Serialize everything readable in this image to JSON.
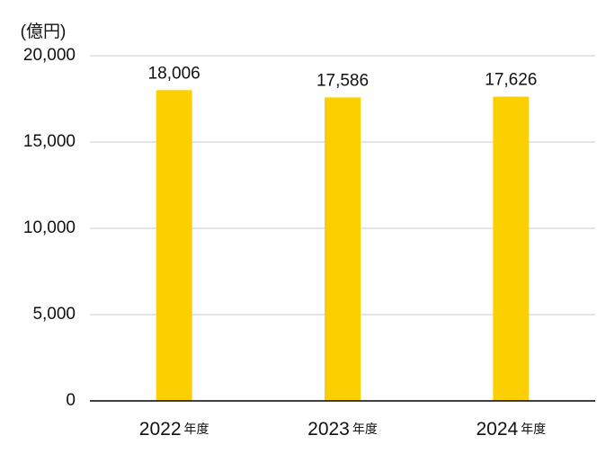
{
  "chart_data": {
    "type": "bar",
    "y_axis_label": "(億円)",
    "categories": [
      "2022年度",
      "2023年度",
      "2024年度"
    ],
    "values": [
      18006,
      17586,
      17626
    ],
    "value_labels": [
      "18,006",
      "17,586",
      "17,626"
    ],
    "color": "#fccf00",
    "ylim": [
      0,
      20000
    ],
    "yticks": [
      0,
      {
        "value": 5000,
        "label": "5,000"
      },
      {
        "value": 10000,
        "label": "10,000"
      },
      {
        "value": 15000,
        "label": "15,000"
      },
      {
        "value": 20000,
        "label": "20,000"
      }
    ],
    "grid": true
  }
}
